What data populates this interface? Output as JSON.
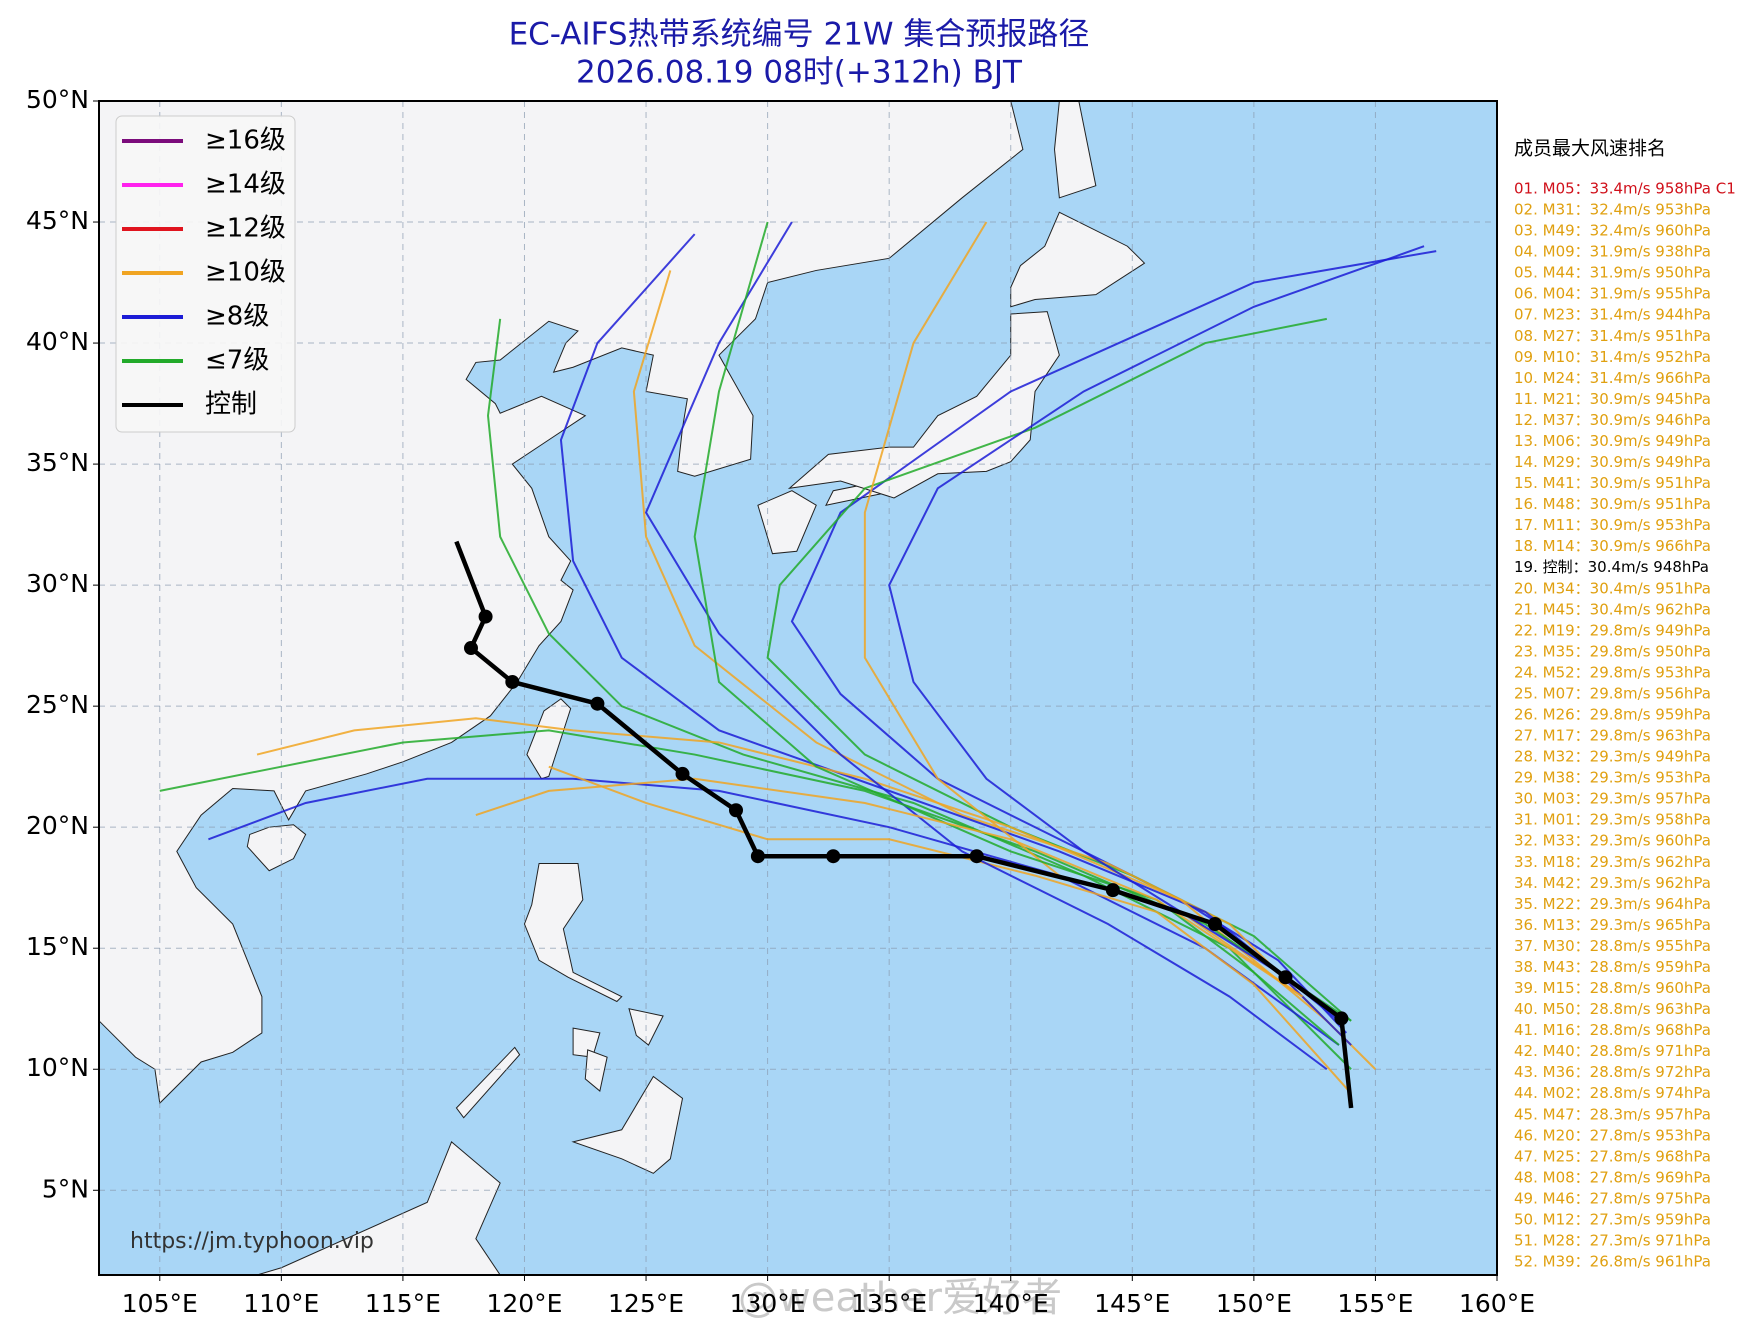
{
  "chart_data": {
    "type": "map",
    "title": "EC-AIFS热带系统编号 21W 集合预报路径",
    "subtitle": "2026.08.19 08时(+312h) BJT",
    "xlim": [
      102.5,
      160
    ],
    "ylim": [
      1.5,
      50
    ],
    "xticks": [
      {
        "value": 105,
        "label": "105°E"
      },
      {
        "value": 110,
        "label": "110°E"
      },
      {
        "value": 115,
        "label": "115°E"
      },
      {
        "value": 120,
        "label": "120°E"
      },
      {
        "value": 125,
        "label": "125°E"
      },
      {
        "value": 130,
        "label": "130°E"
      },
      {
        "value": 135,
        "label": "135°E"
      },
      {
        "value": 140,
        "label": "140°E"
      },
      {
        "value": 145,
        "label": "145°E"
      },
      {
        "value": 150,
        "label": "150°E"
      },
      {
        "value": 155,
        "label": "155°E"
      },
      {
        "value": 160,
        "label": "160°E"
      }
    ],
    "yticks": [
      {
        "value": 5,
        "label": "5°N"
      },
      {
        "value": 10,
        "label": "10°N"
      },
      {
        "value": 15,
        "label": "15°N"
      },
      {
        "value": 20,
        "label": "20°N"
      },
      {
        "value": 25,
        "label": "25°N"
      },
      {
        "value": 30,
        "label": "30°N"
      },
      {
        "value": 35,
        "label": "35°N"
      },
      {
        "value": 40,
        "label": "40°N"
      },
      {
        "value": 45,
        "label": "45°N"
      },
      {
        "value": 50,
        "label": "50°N"
      }
    ],
    "grid": true,
    "legend": [
      {
        "name": "≥16级",
        "color": "#7b0c7b"
      },
      {
        "name": "≥14级",
        "color": "#ff22ee"
      },
      {
        "name": "≥12级",
        "color": "#e0141e"
      },
      {
        "name": "≥10级",
        "color": "#f0a422"
      },
      {
        "name": "≥8级",
        "color": "#1c1cd6"
      },
      {
        "name": "≤7级",
        "color": "#22aa2a"
      },
      {
        "name": "控制",
        "color": "#000000"
      }
    ],
    "tracks": [
      {
        "color": "#1c1cd6",
        "lon": [
          153.8,
          151,
          147,
          142,
          137,
          133,
          131,
          133,
          140,
          150,
          157.5
        ],
        "lat": [
          11.5,
          14.5,
          17,
          19.5,
          22,
          25.5,
          28.5,
          33,
          38,
          42.5,
          43.8
        ]
      },
      {
        "color": "#22aa2a",
        "lon": [
          154,
          150,
          145,
          140,
          134,
          130,
          130.5,
          134,
          141,
          148,
          153
        ],
        "lat": [
          12,
          15.5,
          18,
          20,
          23,
          27,
          30,
          34,
          36.5,
          40,
          41
        ]
      },
      {
        "color": "#f0a422",
        "lon": [
          154,
          149,
          144,
          138,
          132,
          127,
          125,
          124.5,
          126
        ],
        "lat": [
          11,
          16,
          18.5,
          20.5,
          23.5,
          27.5,
          32,
          38,
          43
        ]
      },
      {
        "color": "#1c1cd6",
        "lon": [
          153.5,
          148,
          142,
          135,
          128,
          124,
          122,
          121.5,
          123,
          127
        ],
        "lat": [
          12,
          16.5,
          19,
          21.5,
          24,
          27,
          31,
          36,
          40,
          44.5
        ]
      },
      {
        "color": "#22aa2a",
        "lon": [
          154,
          149,
          143,
          136,
          129,
          124,
          121,
          119,
          118.5,
          119
        ],
        "lat": [
          10,
          15,
          18,
          21,
          23,
          25,
          28,
          32,
          37,
          41
        ]
      },
      {
        "color": "#f0a422",
        "lon": [
          153,
          147,
          140,
          134,
          128,
          122,
          118,
          113,
          109
        ],
        "lat": [
          12,
          17,
          20,
          22,
          23.5,
          24,
          24.5,
          24,
          23
        ]
      },
      {
        "color": "#22aa2a",
        "lon": [
          154,
          148,
          141,
          134,
          127,
          121,
          115,
          110,
          105
        ],
        "lat": [
          12,
          16,
          19,
          21.5,
          23,
          24,
          23.5,
          22.5,
          21.5
        ]
      },
      {
        "color": "#1c1cd6",
        "lon": [
          153.5,
          148,
          142,
          135,
          128,
          122,
          116,
          111,
          107
        ],
        "lat": [
          11,
          15,
          18,
          20,
          21.5,
          22,
          22,
          21,
          19.5
        ]
      },
      {
        "color": "#f0a422",
        "lon": [
          154,
          150,
          146,
          141,
          135,
          130,
          125,
          121
        ],
        "lat": [
          9,
          13.5,
          16.5,
          18,
          19.5,
          19.5,
          21,
          22.5
        ]
      },
      {
        "color": "#1c1cd6",
        "lon": [
          153,
          149,
          144,
          138,
          133,
          128,
          125,
          128,
          131
        ],
        "lat": [
          10,
          13,
          16,
          19,
          23,
          28,
          33,
          40,
          45
        ]
      },
      {
        "color": "#f0a422",
        "lon": [
          155,
          152,
          147,
          142,
          137,
          134,
          134,
          136,
          139
        ],
        "lat": [
          10,
          13,
          16.5,
          18,
          22,
          27,
          33,
          40,
          45
        ]
      },
      {
        "color": "#22aa2a",
        "lon": [
          153.5,
          150,
          146,
          140,
          132,
          128,
          127,
          128,
          130
        ],
        "lat": [
          11,
          14,
          17,
          19,
          22.5,
          26,
          32,
          38,
          45
        ]
      },
      {
        "color": "#1c1cd6",
        "lon": [
          154,
          151,
          147,
          143,
          139,
          136,
          135,
          137,
          143,
          150,
          157
        ],
        "lat": [
          11,
          14,
          16.5,
          19,
          22,
          26,
          30,
          34,
          38,
          41.5,
          44
        ]
      },
      {
        "color": "#f0a422",
        "lon": [
          152,
          146,
          140,
          134,
          127,
          121,
          118
        ],
        "lat": [
          13,
          17,
          19.5,
          21,
          22,
          21.5,
          20.5
        ]
      }
    ],
    "control_track": {
      "name": "控制",
      "lon": [
        154.0,
        153.6,
        151.3,
        148.4,
        144.2,
        138.6,
        132.7,
        129.6,
        128.7,
        126.5,
        123.0,
        119.5,
        117.8,
        118.4,
        117.2
      ],
      "lat": [
        8.4,
        12.1,
        13.8,
        16.0,
        17.4,
        18.8,
        18.8,
        18.8,
        20.7,
        22.2,
        25.1,
        26.0,
        27.4,
        28.7,
        31.8
      ]
    },
    "ranking": {
      "title": "成员最大风速排名",
      "items": [
        {
          "text": "01. M05：33.4m/s 958hPa C1",
          "color": "#d0101a"
        },
        {
          "text": "02. M31：32.4m/s 953hPa",
          "color": "#e0a010"
        },
        {
          "text": "03. M49：32.4m/s 960hPa",
          "color": "#e0a010"
        },
        {
          "text": "04. M09：31.9m/s 938hPa",
          "color": "#e0a010"
        },
        {
          "text": "05. M44：31.9m/s 950hPa",
          "color": "#e0a010"
        },
        {
          "text": "06. M04：31.9m/s 955hPa",
          "color": "#e0a010"
        },
        {
          "text": "07. M23：31.4m/s 944hPa",
          "color": "#e0a010"
        },
        {
          "text": "08. M27：31.4m/s 951hPa",
          "color": "#e0a010"
        },
        {
          "text": "09. M10：31.4m/s 952hPa",
          "color": "#e0a010"
        },
        {
          "text": "10. M24：31.4m/s 966hPa",
          "color": "#e0a010"
        },
        {
          "text": "11. M21：30.9m/s 945hPa",
          "color": "#e0a010"
        },
        {
          "text": "12. M37：30.9m/s 946hPa",
          "color": "#e0a010"
        },
        {
          "text": "13. M06：30.9m/s 949hPa",
          "color": "#e0a010"
        },
        {
          "text": "14. M29：30.9m/s 949hPa",
          "color": "#e0a010"
        },
        {
          "text": "15. M41：30.9m/s 951hPa",
          "color": "#e0a010"
        },
        {
          "text": "16. M48：30.9m/s 951hPa",
          "color": "#e0a010"
        },
        {
          "text": "17. M11：30.9m/s 953hPa",
          "color": "#e0a010"
        },
        {
          "text": "18. M14：30.9m/s 966hPa",
          "color": "#e0a010"
        },
        {
          "text": "19. 控制：30.4m/s 948hPa",
          "color": "#000000"
        },
        {
          "text": "20. M34：30.4m/s 951hPa",
          "color": "#e0a010"
        },
        {
          "text": "21. M45：30.4m/s 962hPa",
          "color": "#e0a010"
        },
        {
          "text": "22. M19：29.8m/s 949hPa",
          "color": "#e0a010"
        },
        {
          "text": "23. M35：29.8m/s 950hPa",
          "color": "#e0a010"
        },
        {
          "text": "24. M52：29.8m/s 953hPa",
          "color": "#e0a010"
        },
        {
          "text": "25. M07：29.8m/s 956hPa",
          "color": "#e0a010"
        },
        {
          "text": "26. M26：29.8m/s 959hPa",
          "color": "#e0a010"
        },
        {
          "text": "27. M17：29.8m/s 963hPa",
          "color": "#e0a010"
        },
        {
          "text": "28. M32：29.3m/s 949hPa",
          "color": "#e0a010"
        },
        {
          "text": "29. M38：29.3m/s 953hPa",
          "color": "#e0a010"
        },
        {
          "text": "30. M03：29.3m/s 957hPa",
          "color": "#e0a010"
        },
        {
          "text": "31. M01：29.3m/s 958hPa",
          "color": "#e0a010"
        },
        {
          "text": "32. M33：29.3m/s 960hPa",
          "color": "#e0a010"
        },
        {
          "text": "33. M18：29.3m/s 962hPa",
          "color": "#e0a010"
        },
        {
          "text": "34. M42：29.3m/s 962hPa",
          "color": "#e0a010"
        },
        {
          "text": "35. M22：29.3m/s 964hPa",
          "color": "#e0a010"
        },
        {
          "text": "36. M13：29.3m/s 965hPa",
          "color": "#e0a010"
        },
        {
          "text": "37. M30：28.8m/s 955hPa",
          "color": "#e0a010"
        },
        {
          "text": "38. M43：28.8m/s 959hPa",
          "color": "#e0a010"
        },
        {
          "text": "39. M15：28.8m/s 960hPa",
          "color": "#e0a010"
        },
        {
          "text": "40. M50：28.8m/s 963hPa",
          "color": "#e0a010"
        },
        {
          "text": "41. M16：28.8m/s 968hPa",
          "color": "#e0a010"
        },
        {
          "text": "42. M40：28.8m/s 971hPa",
          "color": "#e0a010"
        },
        {
          "text": "43. M36：28.8m/s 972hPa",
          "color": "#e0a010"
        },
        {
          "text": "44. M02：28.8m/s 974hPa",
          "color": "#e0a010"
        },
        {
          "text": "45. M47：28.3m/s 957hPa",
          "color": "#e0a010"
        },
        {
          "text": "46. M20：27.8m/s 953hPa",
          "color": "#e0a010"
        },
        {
          "text": "47. M25：27.8m/s 968hPa",
          "color": "#e0a010"
        },
        {
          "text": "48. M08：27.8m/s 969hPa",
          "color": "#e0a010"
        },
        {
          "text": "49. M46：27.8m/s 975hPa",
          "color": "#e0a010"
        },
        {
          "text": "50. M12：27.3m/s 959hPa",
          "color": "#e0a010"
        },
        {
          "text": "51. M28：27.3m/s 971hPa",
          "color": "#e0a010"
        },
        {
          "text": "52. M39：26.8m/s 961hPa",
          "color": "#e0a010"
        }
      ]
    },
    "source": "https://jm.typhoon.vip",
    "watermark": "@weather爱好者"
  }
}
